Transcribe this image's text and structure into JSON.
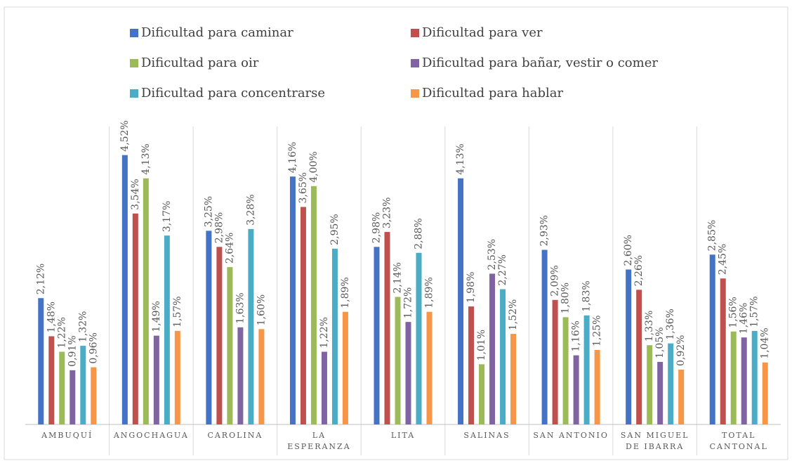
{
  "chart_data": {
    "type": "bar",
    "categories": [
      "AMBUQUÍ",
      "ANGOCHAGUA",
      "CAROLINA",
      "LA ESPERANZA",
      "LITA",
      "SALINAS",
      "SAN ANTONIO",
      "SAN MIGUEL DE IBARRA",
      "TOTAL CANTONAL"
    ],
    "ylim": [
      0,
      5
    ],
    "legend": "top",
    "series": [
      {
        "name": "Dificultad para caminar",
        "color": "#4472c4",
        "values": [
          2.12,
          4.52,
          3.25,
          4.16,
          2.98,
          4.13,
          2.93,
          2.6,
          2.85
        ],
        "value_labels": [
          "2,12%",
          "4,52%",
          "3,25%",
          "4,16%",
          "2,98%",
          "4,13%",
          "2,93%",
          "2,60%",
          "2,85%"
        ]
      },
      {
        "name": "Dificultad para ver",
        "color": "#c0504d",
        "values": [
          1.48,
          3.54,
          2.98,
          3.65,
          3.23,
          1.98,
          2.09,
          2.26,
          2.45
        ],
        "value_labels": [
          "1,48%",
          "3,54%",
          "2,98%",
          "3,65%",
          "3,23%",
          "1,98%",
          "2,09%",
          "2,26%",
          "2,45%"
        ]
      },
      {
        "name": "Dificultad para oir",
        "color": "#9bbb59",
        "values": [
          1.22,
          4.13,
          2.64,
          4.0,
          2.14,
          1.01,
          1.8,
          1.33,
          1.56
        ],
        "value_labels": [
          "1,22%",
          "4,13%",
          "2,64%",
          "4,00%",
          "2,14%",
          "1,01%",
          "1,80%",
          "1,33%",
          "1,56%"
        ]
      },
      {
        "name": "Dificultad para bañar, vestir o comer",
        "color": "#8064a2",
        "values": [
          0.91,
          1.49,
          1.63,
          1.22,
          1.72,
          2.53,
          1.16,
          1.05,
          1.46
        ],
        "value_labels": [
          "0,91%",
          "1,49%",
          "1,63%",
          "1,22%",
          "1,72%",
          "2,53%",
          "1,16%",
          "1,05%",
          "1,46%"
        ]
      },
      {
        "name": "Dificultad para concentrarse",
        "color": "#4bacc6",
        "values": [
          1.32,
          3.17,
          3.28,
          2.95,
          2.88,
          2.27,
          1.83,
          1.36,
          1.57
        ],
        "value_labels": [
          "1,32%",
          "3,17%",
          "3,28%",
          "2,95%",
          "2,88%",
          "2,27%",
          "1,83%",
          "1,36%",
          "1,57%"
        ]
      },
      {
        "name": "Dificultad para hablar",
        "color": "#f79646",
        "values": [
          0.96,
          1.57,
          1.6,
          1.89,
          1.89,
          1.52,
          1.25,
          0.92,
          1.04
        ],
        "value_labels": [
          "0,96%",
          "1,57%",
          "1,60%",
          "1,89%",
          "1,89%",
          "1,52%",
          "1,25%",
          "0,92%",
          "1,04%"
        ]
      }
    ]
  }
}
